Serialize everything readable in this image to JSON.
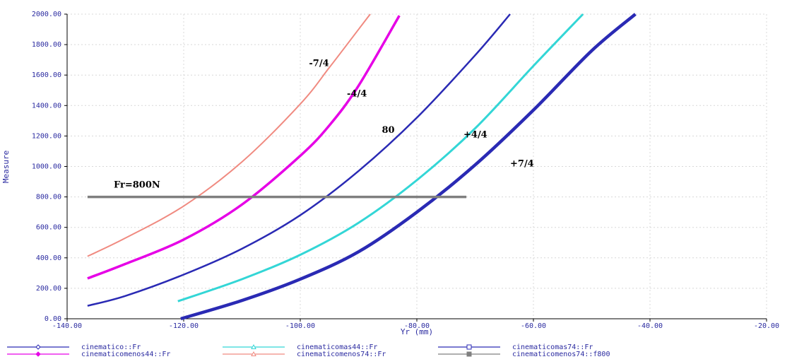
{
  "chart_data": {
    "type": "line",
    "title": "",
    "xlabel": "Yr (mm)",
    "ylabel": "Measure",
    "xlim": [
      -140,
      -20
    ],
    "ylim": [
      0,
      2000
    ],
    "x_ticks": [
      "-140.00",
      "-120.00",
      "-100.00",
      "-80.00",
      "-60.00",
      "-40.00",
      "-20.00"
    ],
    "y_ticks": [
      "0.00",
      "200.00",
      "400.00",
      "600.00",
      "800.00",
      "1000.00",
      "1200.00",
      "1400.00",
      "1600.00",
      "1800.00",
      "2000.00"
    ],
    "grid": true,
    "series": [
      {
        "name": "cinematico::Fr",
        "color": "#2a2ab4",
        "marker": "diamond",
        "x": [
          -136.5,
          -130,
          -120,
          -110,
          -100,
          -90,
          -80,
          -70,
          -64
        ],
        "y": [
          85,
          150,
          290,
          460,
          680,
          970,
          1320,
          1730,
          2000
        ]
      },
      {
        "name": "cinematicomenos44::Fr",
        "color": "#e600e6",
        "marker": "diamond-filled",
        "x": [
          -136.5,
          -130,
          -120,
          -110,
          -100,
          -95,
          -90,
          -83
        ],
        "y": [
          265,
          360,
          520,
          750,
          1070,
          1270,
          1530,
          1990
        ]
      },
      {
        "name": "cinematicomas44::Fr",
        "color": "#33d6d6",
        "marker": "triangle",
        "x": [
          -121,
          -110,
          -100,
          -90,
          -80,
          -70,
          -60,
          -51.5
        ],
        "y": [
          115,
          260,
          420,
          630,
          910,
          1250,
          1660,
          2000
        ]
      },
      {
        "name": "cinematicomenos74::Fr",
        "color": "#f08a80",
        "marker": "triangle",
        "x": [
          -136.5,
          -130,
          -120,
          -110,
          -100,
          -95,
          -90,
          -88
        ],
        "y": [
          410,
          530,
          740,
          1030,
          1410,
          1650,
          1900,
          2000
        ]
      },
      {
        "name": "cinematicomas74::Fr",
        "color": "#2a2ab4",
        "marker": "square",
        "x": [
          -120.5,
          -110,
          -100,
          -90,
          -80,
          -70,
          -60,
          -50,
          -42.5
        ],
        "y": [
          0,
          120,
          260,
          440,
          700,
          1010,
          1370,
          1760,
          2000
        ]
      },
      {
        "name": "cinematicomenos74::f800",
        "color": "#7f7f7f",
        "marker": "square-filled",
        "x": [
          -136.5,
          -71.5
        ],
        "y": [
          800,
          800
        ]
      }
    ],
    "annotations": [
      {
        "text": "-7/4",
        "x": -98.5,
        "y": 1660
      },
      {
        "text": "-4/4",
        "x": -92,
        "y": 1460
      },
      {
        "text": "80",
        "x": -86,
        "y": 1220
      },
      {
        "text": "+4/4",
        "x": -72,
        "y": 1190
      },
      {
        "text": "+7/4",
        "x": -64,
        "y": 1000
      },
      {
        "text": "Fr=800N",
        "x": -132,
        "y": 860
      }
    ],
    "legend_position": "bottom"
  }
}
